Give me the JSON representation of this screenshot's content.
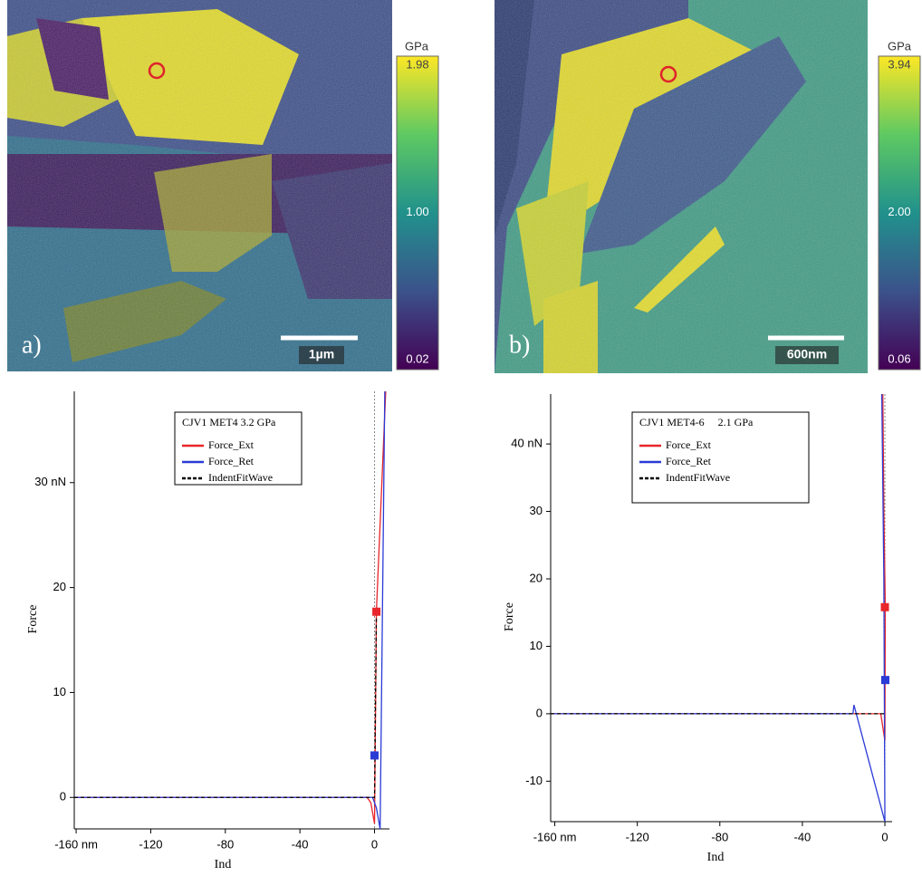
{
  "images": [
    {
      "label": "a)",
      "scale_bar": "1µm",
      "colorbar": {
        "unit": "GPa",
        "clim": [
          0.02,
          1.98
        ],
        "ticks": [
          1.98,
          {
            "value": 1,
            "label": "1.00"
          },
          0.02
        ]
      }
    },
    {
      "label": "b)",
      "scale_bar": "600nm",
      "colorbar": {
        "unit": "GPa",
        "clim": [
          0.06,
          3.94
        ],
        "ticks": [
          3.94,
          {
            "value": 2,
            "label": "2.00"
          },
          0.06
        ]
      }
    }
  ],
  "chart_data": [
    {
      "type": "line",
      "legend_title": "CJV1 MET4 3.2 GPa",
      "x_label": "Ind",
      "y_label": "Force",
      "xlim": [
        -161,
        8
      ],
      "xticks": [
        {
          "value": -160,
          "label": "-160 nm"
        },
        -120,
        -80,
        -40,
        0
      ],
      "ylim": [
        -3,
        38.7
      ],
      "yticks": [
        0,
        10,
        20,
        {
          "value": 30,
          "label": "30 nN"
        }
      ],
      "series": [
        {
          "name": "Force_Ext",
          "color": "#e8262b",
          "dash": false,
          "x": [
            -161,
            -4,
            -2,
            0,
            1,
            6
          ],
          "values": [
            0,
            0,
            -0.5,
            -2.5,
            17.7,
            38.7
          ]
        },
        {
          "name": "Force_Ret",
          "color": "#2b3bd6",
          "dash": false,
          "x": [
            5.5,
            3,
            1,
            -1,
            -4,
            -161
          ],
          "values": [
            38.7,
            -3,
            -1,
            0,
            0,
            0
          ]
        },
        {
          "name": "IndentFitWave",
          "color": "#000000",
          "dash": true,
          "x": [
            -161,
            0,
            1
          ],
          "values": [
            0,
            0,
            17.7
          ]
        }
      ],
      "markers": [
        {
          "color": "#e8262b",
          "x": 1,
          "y": 17.7
        },
        {
          "color": "#2b3bd6",
          "x": 0,
          "y": 4
        }
      ]
    },
    {
      "type": "line",
      "legend_title": "CJV1 MET4-6     2.1 GPa",
      "x_label": "Ind",
      "y_label": "Force",
      "xlim": [
        -162,
        3.5
      ],
      "xticks": [
        {
          "value": -160,
          "label": "-160 nm"
        },
        -120,
        -80,
        -40,
        0
      ],
      "ylim": [
        -16,
        47.4
      ],
      "yticks": [
        -10,
        0,
        10,
        20,
        30,
        {
          "value": 40,
          "label": "40 nN"
        }
      ],
      "series": [
        {
          "name": "Force_Ext",
          "color": "#e8262b",
          "dash": false,
          "x": [
            -162,
            -2,
            0,
            0.2,
            -0.5,
            -1
          ],
          "values": [
            0,
            0,
            -4,
            15.8,
            30,
            47.4
          ]
        },
        {
          "name": "Force_Ret",
          "color": "#2b3bd6",
          "dash": false,
          "x": [
            -1.5,
            -0.5,
            0,
            -15,
            -15.5,
            -162
          ],
          "values": [
            47.4,
            20,
            -16,
            1.3,
            0,
            0
          ]
        },
        {
          "name": "IndentFitWave",
          "color": "#000000",
          "dash": true,
          "x": [
            -162,
            0
          ],
          "values": [
            0,
            0
          ]
        }
      ],
      "markers": [
        {
          "color": "#e8262b",
          "x": 0,
          "y": 15.8
        },
        {
          "color": "#2b3bd6",
          "x": 0.2,
          "y": 5
        }
      ]
    }
  ]
}
